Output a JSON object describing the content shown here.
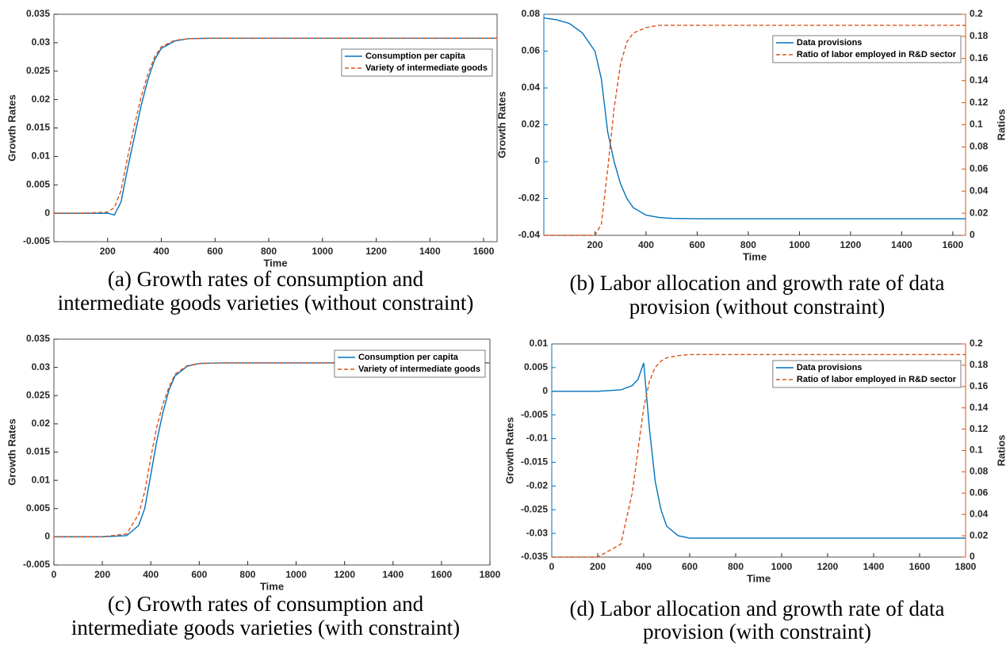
{
  "chart_data": [
    {
      "type": "line",
      "caption": [
        "(a) Growth rates of consumption and",
        "intermediate goods varieties (without constraint)"
      ],
      "xlabel": "Time",
      "ylabel": "Growth Rates",
      "x": [
        0,
        100,
        200,
        225,
        250,
        275,
        300,
        325,
        350,
        375,
        400,
        450,
        500,
        600,
        800,
        1000,
        1200,
        1400,
        1650
      ],
      "series": [
        {
          "name": "Consumption per capita",
          "color": "#0072BD",
          "dashed": false,
          "values": [
            0,
            0,
            0,
            -0.0003,
            0.002,
            0.008,
            0.0135,
            0.019,
            0.0235,
            0.027,
            0.029,
            0.0303,
            0.0307,
            0.0308,
            0.0308,
            0.0308,
            0.0308,
            0.0308,
            0.0308
          ]
        },
        {
          "name": "Variety of intermediate goods",
          "color": "#D95319",
          "dashed": true,
          "values": [
            0,
            0,
            0.0002,
            0.001,
            0.004,
            0.01,
            0.0155,
            0.0205,
            0.0245,
            0.0275,
            0.0293,
            0.0304,
            0.0307,
            0.0308,
            0.0308,
            0.0308,
            0.0308,
            0.0308,
            0.0308
          ]
        }
      ],
      "xlim": [
        0,
        1650
      ],
      "xticks": [
        200,
        400,
        600,
        800,
        1000,
        1200,
        1400,
        1600
      ],
      "ylim": [
        -0.005,
        0.035
      ],
      "yticks": [
        -0.005,
        0,
        0.005,
        0.01,
        0.015,
        0.02,
        0.025,
        0.03,
        0.035
      ],
      "legend": "upper right"
    },
    {
      "type": "line",
      "caption": [
        "(b) Labor allocation and growth rate of data",
        "provision (without constraint)"
      ],
      "xlabel": "Time",
      "ylabel": "Growth Rates",
      "y2label": "Ratios",
      "x": [
        0,
        50,
        100,
        150,
        200,
        225,
        250,
        275,
        300,
        325,
        350,
        400,
        450,
        500,
        600,
        800,
        1000,
        1200,
        1400,
        1650
      ],
      "series": [
        {
          "name": "Data provisions",
          "color": "#0072BD",
          "dashed": false,
          "axis": "y",
          "values": [
            0.078,
            0.077,
            0.075,
            0.07,
            0.06,
            0.045,
            0.016,
            0,
            -0.012,
            -0.02,
            -0.025,
            -0.029,
            -0.0303,
            -0.0308,
            -0.031,
            -0.031,
            -0.031,
            -0.031,
            -0.031,
            -0.031
          ]
        },
        {
          "name": "Ratio of labor employed in R&D sector",
          "color": "#D95319",
          "dashed": true,
          "axis": "y2",
          "values": [
            0,
            0,
            0,
            0,
            0,
            0.01,
            0.06,
            0.115,
            0.155,
            0.175,
            0.183,
            0.188,
            0.19,
            0.19,
            0.19,
            0.19,
            0.19,
            0.19,
            0.19,
            0.19
          ]
        }
      ],
      "xlim": [
        0,
        1650
      ],
      "xticks": [
        200,
        400,
        600,
        800,
        1000,
        1200,
        1400,
        1600
      ],
      "ylim": [
        -0.04,
        0.08
      ],
      "yticks": [
        -0.04,
        -0.02,
        0,
        0.02,
        0.04,
        0.06,
        0.08
      ],
      "y2lim": [
        0,
        0.2
      ],
      "y2ticks": [
        0,
        0.02,
        0.04,
        0.06,
        0.08,
        0.1,
        0.12,
        0.14,
        0.16,
        0.18,
        0.2
      ],
      "legend": "upper right"
    },
    {
      "type": "line",
      "caption": [
        "(c) Growth rates of consumption and",
        "intermediate goods varieties (with constraint)"
      ],
      "xlabel": "Time",
      "ylabel": "Growth Rates",
      "x": [
        0,
        200,
        300,
        350,
        375,
        400,
        425,
        450,
        475,
        500,
        550,
        600,
        700,
        1000,
        1400,
        1800
      ],
      "series": [
        {
          "name": "Consumption per capita",
          "color": "#0072BD",
          "dashed": false,
          "values": [
            0,
            0,
            0.0002,
            0.002,
            0.005,
            0.011,
            0.017,
            0.022,
            0.026,
            0.0285,
            0.0302,
            0.0307,
            0.0308,
            0.0308,
            0.0308,
            0.0308
          ]
        },
        {
          "name": "Variety of intermediate goods",
          "color": "#D95319",
          "dashed": true,
          "values": [
            0,
            0,
            0.0005,
            0.004,
            0.008,
            0.014,
            0.0195,
            0.0235,
            0.0265,
            0.0288,
            0.0303,
            0.0307,
            0.0308,
            0.0308,
            0.0308,
            0.0308
          ]
        }
      ],
      "xlim": [
        0,
        1800
      ],
      "xticks": [
        0,
        200,
        400,
        600,
        800,
        1000,
        1200,
        1400,
        1600,
        1800
      ],
      "ylim": [
        -0.005,
        0.035
      ],
      "yticks": [
        -0.005,
        0,
        0.005,
        0.01,
        0.015,
        0.02,
        0.025,
        0.03,
        0.035
      ],
      "legend": "upper right"
    },
    {
      "type": "line",
      "caption": [
        "(d) Labor allocation and growth rate of data",
        "provision (with constraint)"
      ],
      "xlabel": "Time",
      "ylabel": "Growth Rates",
      "y2label": "Ratios",
      "x": [
        0,
        100,
        200,
        300,
        350,
        375,
        400,
        425,
        450,
        475,
        500,
        550,
        600,
        800,
        1000,
        1400,
        1800
      ],
      "series": [
        {
          "name": "Data provisions",
          "color": "#0072BD",
          "dashed": false,
          "axis": "y",
          "values": [
            0,
            0,
            0,
            0.0003,
            0.0012,
            0.0025,
            0.006,
            -0.008,
            -0.019,
            -0.025,
            -0.0285,
            -0.0305,
            -0.031,
            -0.031,
            -0.031,
            -0.031,
            -0.031
          ]
        },
        {
          "name": "Ratio of labor employed in R&D sector",
          "color": "#D95319",
          "dashed": true,
          "axis": "y2",
          "values": [
            0,
            0,
            0,
            0.012,
            0.06,
            0.1,
            0.14,
            0.165,
            0.178,
            0.184,
            0.187,
            0.189,
            0.19,
            0.19,
            0.19,
            0.19,
            0.19
          ]
        }
      ],
      "xlim": [
        0,
        1800
      ],
      "xticks": [
        0,
        200,
        400,
        600,
        800,
        1000,
        1200,
        1400,
        1600,
        1800
      ],
      "ylim": [
        -0.035,
        0.01
      ],
      "yticks": [
        -0.035,
        -0.03,
        -0.025,
        -0.02,
        -0.015,
        -0.01,
        -0.005,
        0,
        0.005,
        0.01
      ],
      "y2lim": [
        0,
        0.2
      ],
      "y2ticks": [
        0,
        0.02,
        0.04,
        0.06,
        0.08,
        0.1,
        0.12,
        0.14,
        0.16,
        0.18,
        0.2
      ],
      "legend": "upper right"
    }
  ]
}
